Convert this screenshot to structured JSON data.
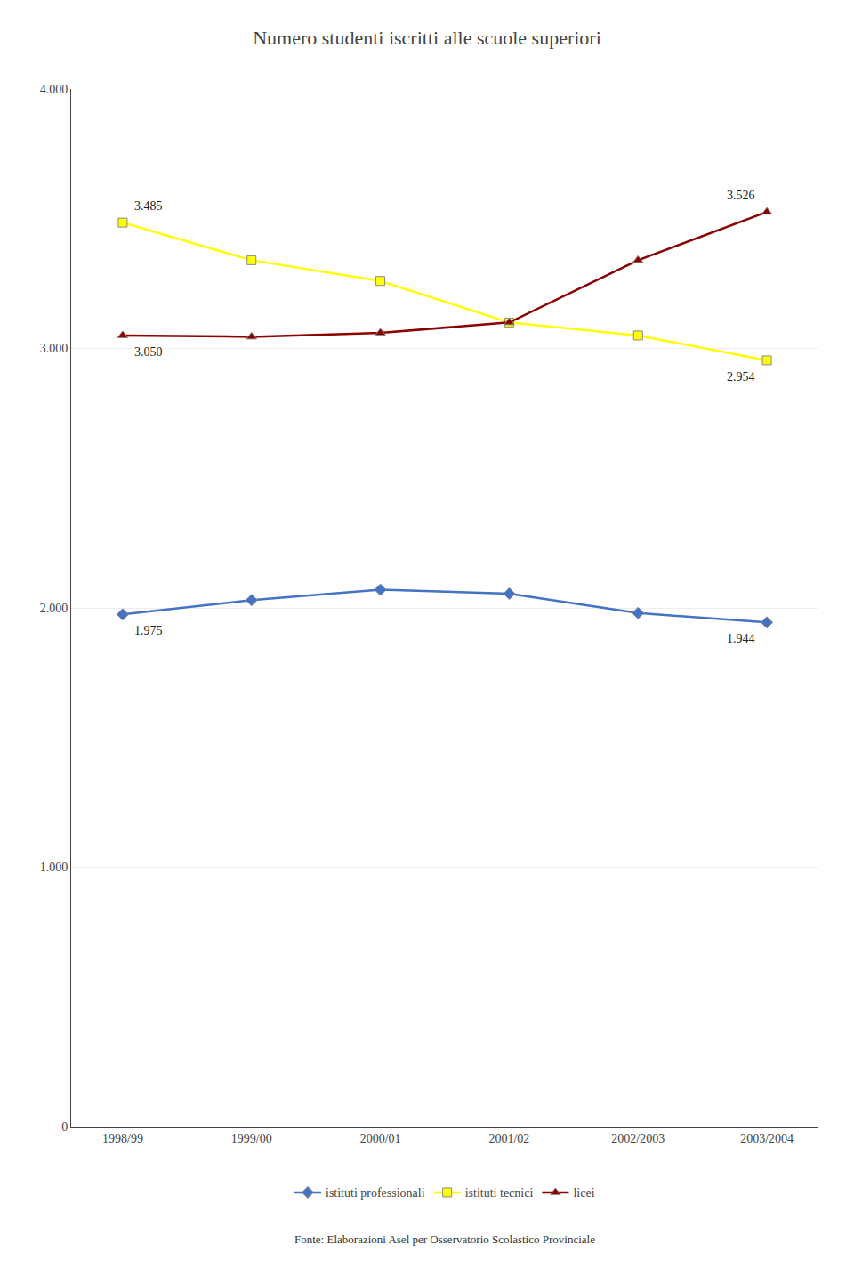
{
  "chart_data": {
    "type": "line",
    "title": "Numero studenti iscritti alle scuole superiori",
    "categories": [
      "1998/99",
      "1999/00",
      "2000/01",
      "2001/02",
      "2002/2003",
      "2003/2004"
    ],
    "series": [
      {
        "name": "istituti professionali",
        "color": "#4472C4",
        "marker": "diamond",
        "values": [
          1975,
          2030,
          2070,
          2055,
          1980,
          1944
        ]
      },
      {
        "name": "istituti tecnici",
        "color": "#FFFF00",
        "marker": "square",
        "values": [
          3485,
          3340,
          3260,
          3100,
          3050,
          2954
        ]
      },
      {
        "name": "licei",
        "color": "#8B0000",
        "marker": "triangle-up",
        "values": [
          3050,
          3045,
          3060,
          3100,
          3340,
          3526
        ]
      }
    ],
    "ylim": [
      0,
      4000
    ],
    "yticks": [
      0,
      {
        "value": 1000,
        "label": "1.000"
      },
      {
        "value": 2000,
        "label": "2.000"
      },
      {
        "value": 3000,
        "label": "3.000"
      },
      {
        "value": 4000,
        "label": "4.000"
      }
    ],
    "grid": true,
    "legend": "bottom",
    "annotations": [
      {
        "text": "3.485",
        "x": "1998/99",
        "y": 3485
      },
      {
        "text": "3.050",
        "x": "1998/99",
        "y": 3050
      },
      {
        "text": "1.975",
        "x": "1998/99",
        "y": 1975
      },
      {
        "text": "3.526",
        "x": "2003/2004",
        "y": 3526
      },
      {
        "text": "2.954",
        "x": "2003/2004",
        "y": 2954
      },
      {
        "text": "1.944",
        "x": "2003/2004",
        "y": 1944
      }
    ],
    "source": "Fonte: Elaborazioni Asel per Osservatorio Scolastico Provinciale"
  }
}
